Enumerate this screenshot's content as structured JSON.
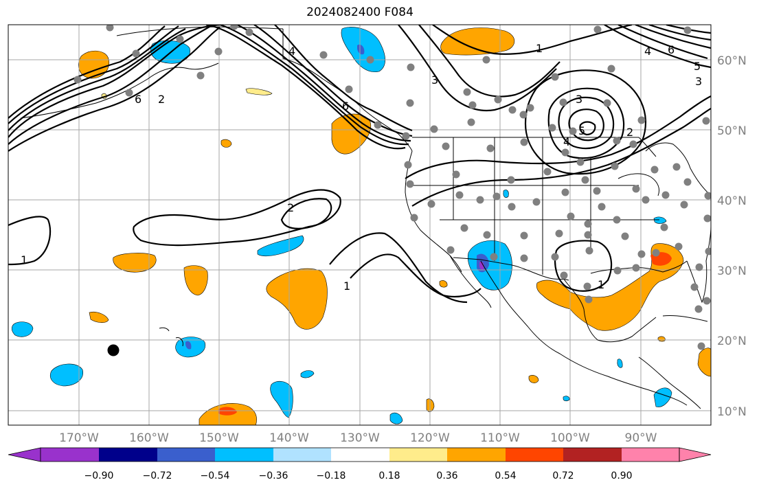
{
  "title": "2024082400 F084",
  "map": {
    "lat_ticks": [
      "60°N",
      "50°N",
      "40°N",
      "30°N",
      "20°N",
      "10°N"
    ],
    "lon_ticks": [
      "170°W",
      "160°W",
      "150°W",
      "140°W",
      "130°W",
      "120°W",
      "110°W",
      "100°W",
      "90°W"
    ],
    "grid": "on",
    "colors": {
      "gridline": "#a6a6a6",
      "tick_label": "#808080",
      "contour": "#000000",
      "station_dot": "#808080",
      "marker_dot": "#000000"
    }
  },
  "contour_labels": [
    "1",
    "2",
    "3",
    "4",
    "5",
    "6"
  ],
  "colorbar": {
    "ticks": [
      "−0.90",
      "−0.72",
      "−0.54",
      "−0.36",
      "−0.18",
      "0.18",
      "0.36",
      "0.54",
      "0.72",
      "0.90"
    ],
    "extend": "both",
    "colors": [
      "#9932cc",
      "#00008b",
      "#3a5fcd",
      "#00bfff",
      "#b0e2ff",
      "#ffffff",
      "#ffec8b",
      "#ffa500",
      "#ff4500",
      "#b22222",
      "#ff82ab"
    ]
  }
}
